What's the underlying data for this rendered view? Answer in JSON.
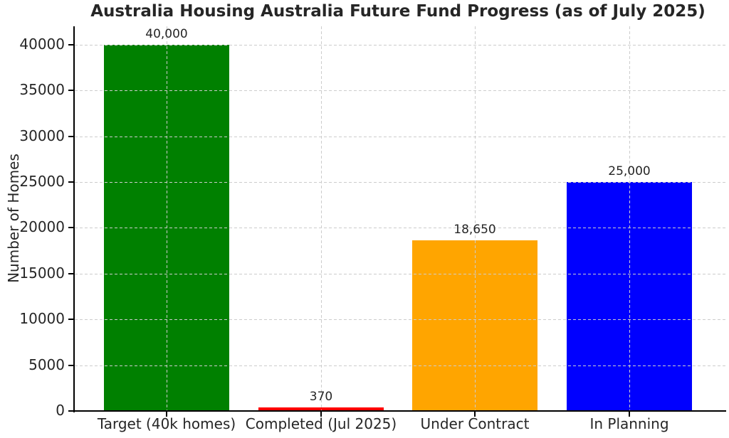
{
  "chart_data": {
    "type": "bar",
    "title": "Australia Housing Australia Future Fund Progress (as of July 2025)",
    "ylabel": "Number of Homes",
    "xlabel": "",
    "categories": [
      "Target (40k homes)",
      "Completed (Jul 2025)",
      "Under Contract",
      "In Planning"
    ],
    "values": [
      40000,
      370,
      18650,
      25000
    ],
    "value_labels": [
      "40,000",
      "370",
      "18,650",
      "25,000"
    ],
    "bar_colors": [
      "#008000",
      "#ff0000",
      "#ffa500",
      "#0000ff"
    ],
    "yticks": [
      0,
      5000,
      10000,
      15000,
      20000,
      25000,
      30000,
      35000,
      40000
    ],
    "ylim": [
      0,
      42000
    ],
    "grid": "dashed gridlines on both axes, drawn above bars",
    "legend": "none"
  },
  "colors": {
    "text": "#262626",
    "grid": "#cccccc",
    "spine": "#000000",
    "background": "#ffffff"
  }
}
